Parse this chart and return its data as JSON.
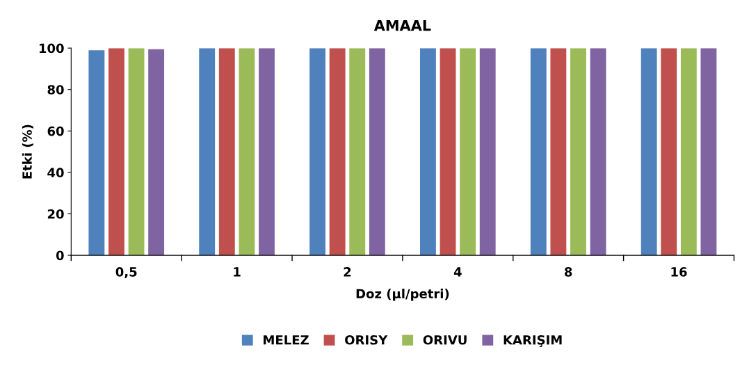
{
  "chart_data": {
    "type": "bar",
    "title": "AMAAL",
    "xlabel": "Doz (µl/petri)",
    "ylabel": "Etki (%)",
    "categories": [
      "0,5",
      "1",
      "2",
      "4",
      "8",
      "16"
    ],
    "series": [
      {
        "name": "MELEZ",
        "color": "#4f81bd",
        "values": [
          99,
          100,
          100,
          100,
          100,
          100
        ]
      },
      {
        "name": "ORISY",
        "color": "#c0504d",
        "values": [
          100,
          100,
          100,
          100,
          100,
          100
        ]
      },
      {
        "name": "ORIVU",
        "color": "#9bbb59",
        "values": [
          100,
          100,
          100,
          100,
          100,
          100
        ]
      },
      {
        "name": "KARIŞIM",
        "color": "#8064a2",
        "values": [
          99.5,
          100,
          100,
          100,
          100,
          100
        ]
      }
    ],
    "ylim": [
      0,
      100
    ],
    "yticks": [
      0,
      20,
      40,
      60,
      80,
      100
    ],
    "grid": false,
    "legend": "bottom"
  }
}
